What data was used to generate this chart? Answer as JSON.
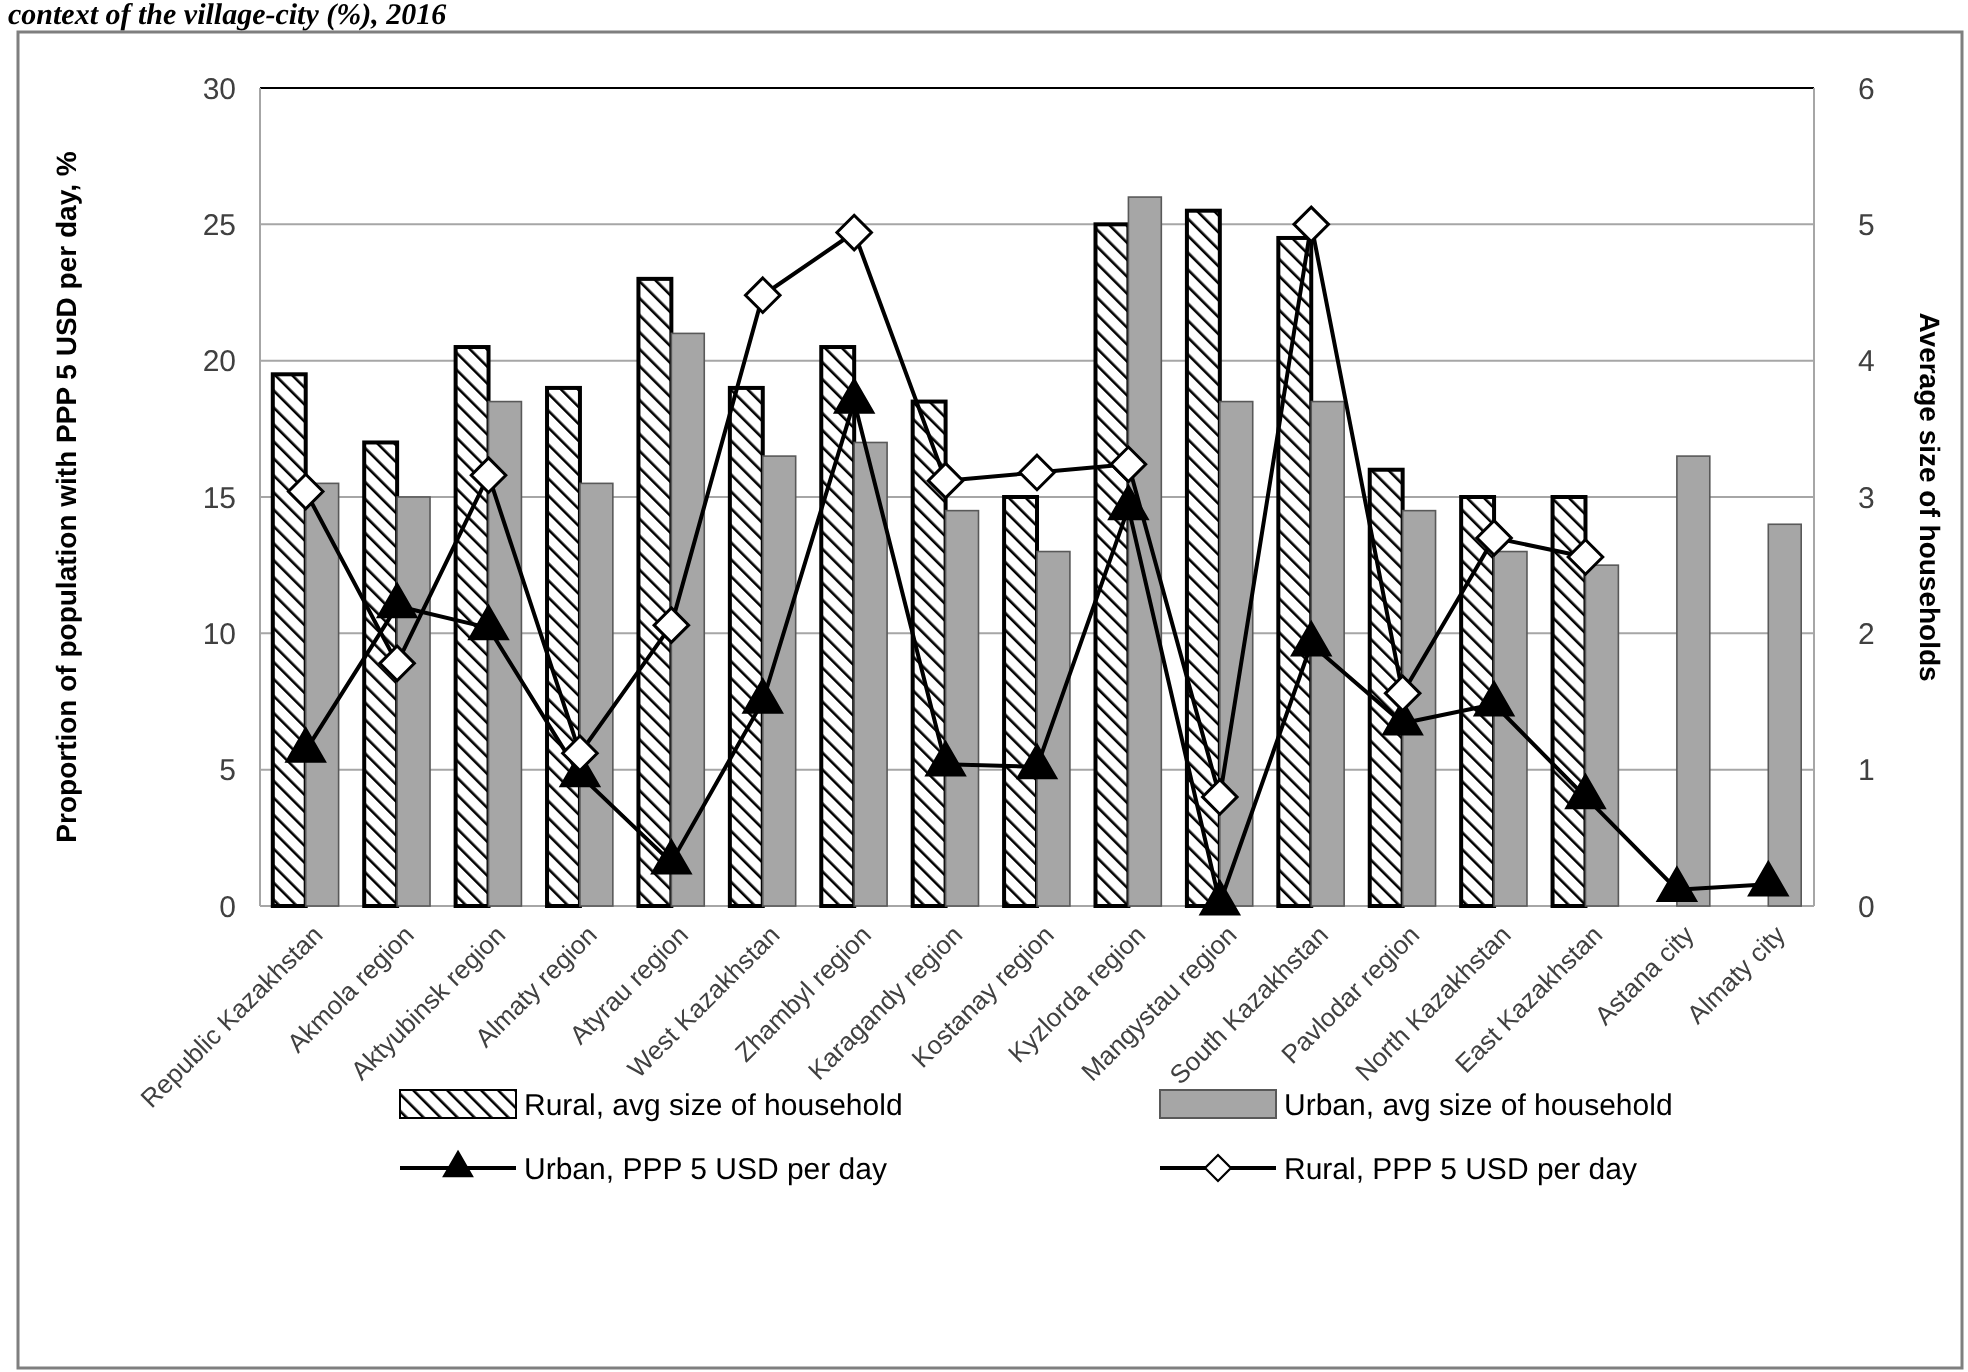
{
  "chart_data": {
    "type": "bar",
    "title": "context of the village-city (%), 2016",
    "ylabel": "Proportion of population with PPP 5 USD per day, %",
    "y2label": "Average size of households",
    "categories": [
      "Republic Kazakhstan",
      "Akmola region",
      "Aktyubinsk region",
      "Almaty region",
      "Atyrau region",
      "West Kazakhstan",
      "Zhambyl region",
      "Karagandy region",
      "Kostanay region",
      "Kyzlorda region",
      "Mangystau region",
      "South Kazakhstan",
      "Pavlodar region",
      "North Kazakhstan",
      "East Kazakhstan",
      "Astana city",
      "Almaty city"
    ],
    "series": [
      {
        "name": "Rural, avg size of household",
        "axis": "y2",
        "color": "#000000",
        "values": [
          3.9,
          3.4,
          4.1,
          3.8,
          4.6,
          3.8,
          4.1,
          3.7,
          3.0,
          5.0,
          5.1,
          4.9,
          3.2,
          3.0,
          3.0,
          null,
          null
        ]
      },
      {
        "name": "Urban, avg size of household",
        "axis": "y2",
        "color": "#a6a6a6",
        "values": [
          3.1,
          3.0,
          3.7,
          3.1,
          4.2,
          3.3,
          3.4,
          2.9,
          2.6,
          5.2,
          3.7,
          3.7,
          2.9,
          2.6,
          2.5,
          3.3,
          2.8
        ]
      },
      {
        "name": "Urban, PPP 5 USD per day",
        "type": "line",
        "marker": "triangle",
        "color": "#000000",
        "values": [
          5.7,
          11,
          10.2,
          4.8,
          1.6,
          7.5,
          18.5,
          5.2,
          5.1,
          14.6,
          0.1,
          9.6,
          6.7,
          7.4,
          4.0,
          0.6,
          0.8
        ]
      },
      {
        "name": "Rural, PPP 5 USD per day",
        "type": "line",
        "marker": "diamond",
        "color": "#000000",
        "values": [
          15.2,
          8.9,
          15.8,
          5.6,
          10.3,
          22.4,
          24.7,
          15.6,
          15.9,
          16.2,
          4.0,
          25.0,
          7.8,
          13.5,
          12.8,
          null,
          null
        ]
      }
    ],
    "ylim": [
      0,
      30
    ],
    "yticks": [
      0,
      5,
      10,
      15,
      20,
      25,
      30
    ],
    "y2lim": [
      0,
      6
    ],
    "y2ticks": [
      0,
      1,
      2,
      3,
      4,
      5,
      6
    ],
    "grid": "y",
    "legend": "bottom"
  }
}
